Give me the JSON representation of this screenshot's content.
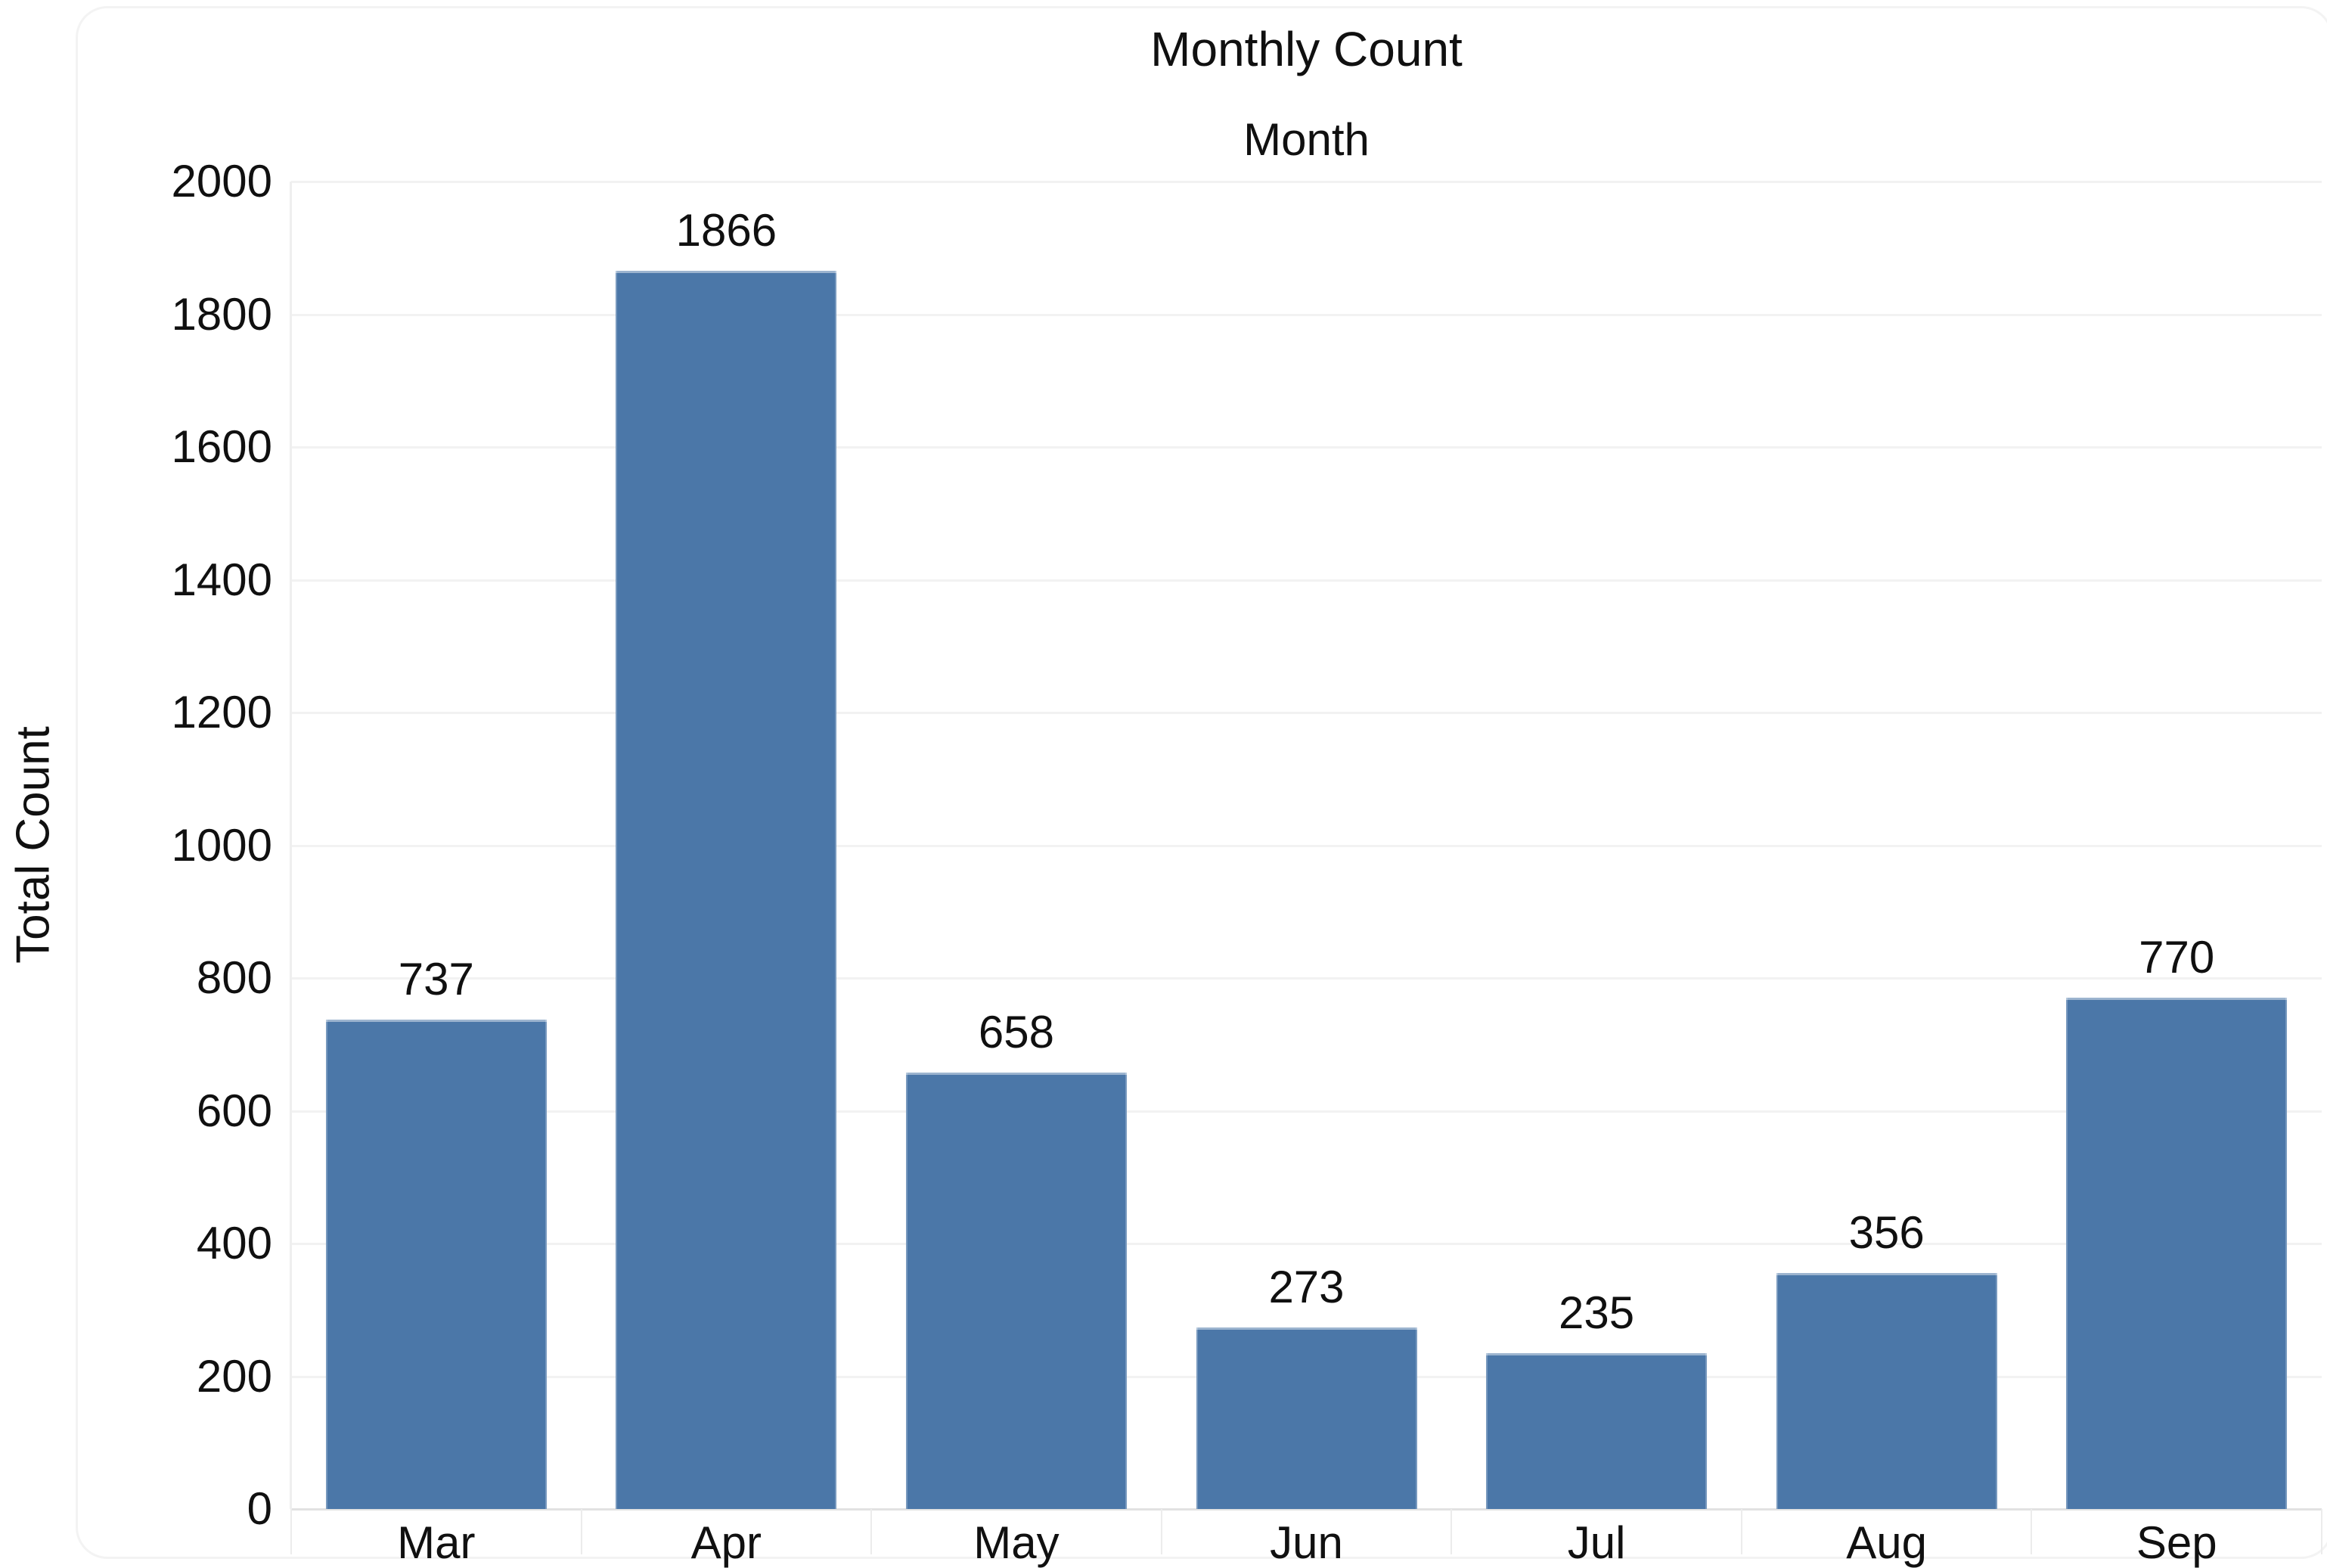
{
  "chart_data": {
    "type": "bar",
    "title": "Monthly Count",
    "subtitle": "Month",
    "xlabel": "",
    "ylabel": "Total Count",
    "categories": [
      "Mar",
      "Apr",
      "May",
      "Jun",
      "Jul",
      "Aug",
      "Sep"
    ],
    "values": [
      737,
      1866,
      658,
      273,
      235,
      356,
      770
    ],
    "value_labels": [
      "737",
      "1866",
      "658",
      "273",
      "235",
      "356",
      "770"
    ],
    "ylim": [
      0,
      2000
    ],
    "ytick_step": 200,
    "ytick_labels": [
      "0",
      "200",
      "400",
      "600",
      "800",
      "1000",
      "1200",
      "1400",
      "1600",
      "1800",
      "2000"
    ],
    "grid": "horizontal",
    "legend_position": "none",
    "bar_color": "#4b77a8"
  }
}
